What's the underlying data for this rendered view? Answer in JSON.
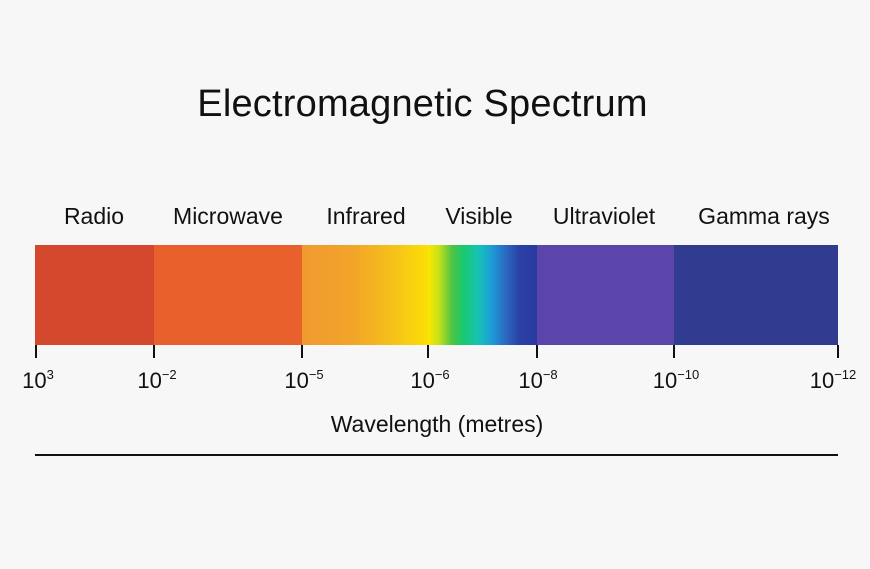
{
  "title": "Electromagnetic Spectrum",
  "bands": [
    {
      "label": "Radio",
      "color": "#d4482d"
    },
    {
      "label": "Microwave",
      "color": "#e8612c"
    },
    {
      "label": "Infrared",
      "color": "gradient-orange-to-yellow"
    },
    {
      "label": "Visible",
      "color": "gradient-rainbow"
    },
    {
      "label": "Ultraviolet",
      "color": "#5b45ab"
    },
    {
      "label": "Gamma rays",
      "color": "#313b8f"
    }
  ],
  "ticks": [
    {
      "base": "10",
      "exp": "3"
    },
    {
      "base": "10",
      "exp": "−2"
    },
    {
      "base": "10",
      "exp": "−5"
    },
    {
      "base": "10",
      "exp": "−6"
    },
    {
      "base": "10",
      "exp": "−8"
    },
    {
      "base": "10",
      "exp": "−10"
    },
    {
      "base": "10",
      "exp": "−12"
    }
  ],
  "axis_title": "Wavelength (metres)"
}
